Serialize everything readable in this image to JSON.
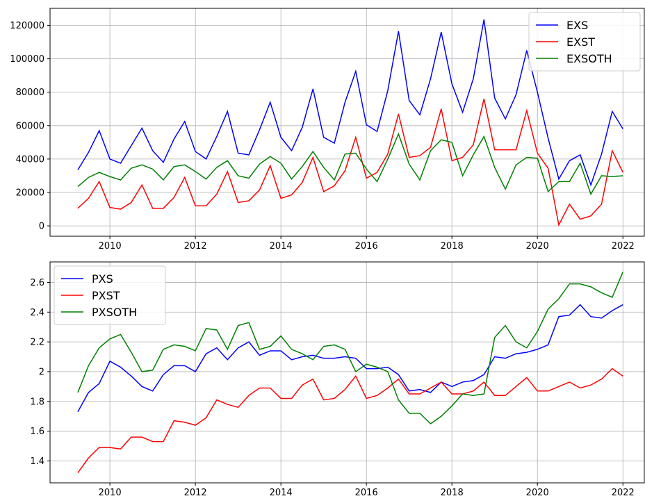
{
  "chart_data": [
    {
      "type": "line",
      "legend": "upper right",
      "grid": true,
      "xlim": [
        2008.6,
        2022.5
      ],
      "ylim": [
        -6200,
        130200
      ],
      "xticks": [
        2010,
        2012,
        2014,
        2016,
        2018,
        2020,
        2022
      ],
      "yticks": [
        0,
        20000,
        40000,
        60000,
        80000,
        100000,
        120000
      ],
      "x": [
        2009.25,
        2009.5,
        2009.75,
        2010,
        2010.25,
        2010.5,
        2010.75,
        2011,
        2011.25,
        2011.5,
        2011.75,
        2012,
        2012.25,
        2012.5,
        2012.75,
        2013,
        2013.25,
        2013.5,
        2013.75,
        2014,
        2014.25,
        2014.5,
        2014.75,
        2015,
        2015.25,
        2015.5,
        2015.75,
        2016,
        2016.25,
        2016.5,
        2016.75,
        2017,
        2017.25,
        2017.5,
        2017.75,
        2018,
        2018.25,
        2018.5,
        2018.75,
        2019,
        2019.25,
        2019.5,
        2019.75,
        2020,
        2020.25,
        2020.5,
        2020.75,
        2021,
        2021.25,
        2021.5,
        2021.75,
        2022
      ],
      "series": [
        {
          "name": "EXS",
          "color": "#0000ff",
          "values": [
            33500,
            44000,
            57000,
            40000,
            37500,
            48000,
            58500,
            45000,
            38000,
            52000,
            62500,
            44500,
            40000,
            53500,
            68500,
            43500,
            42500,
            57500,
            74000,
            53000,
            45000,
            59000,
            82000,
            53000,
            49500,
            74000,
            92500,
            60500,
            56500,
            81000,
            116500,
            75000,
            66500,
            88000,
            116000,
            85000,
            68000,
            88000,
            123500,
            76500,
            64000,
            78500,
            105000,
            80000,
            52500,
            28000,
            39000,
            42500,
            24500,
            43000,
            68500,
            58000
          ]
        },
        {
          "name": "EXST",
          "color": "#ff0000",
          "values": [
            10500,
            16500,
            26500,
            11000,
            10000,
            14000,
            24500,
            10500,
            10500,
            17000,
            29000,
            12000,
            12000,
            19000,
            32500,
            14000,
            15000,
            21500,
            36000,
            16500,
            18500,
            26000,
            41000,
            20500,
            24000,
            33000,
            53000,
            28500,
            32000,
            43000,
            67000,
            41000,
            42000,
            47000,
            70000,
            39000,
            41000,
            48500,
            76000,
            45500,
            45500,
            45500,
            69000,
            43500,
            34500,
            500,
            13000,
            4000,
            6000,
            13000,
            45000,
            32000
          ]
        },
        {
          "name": "EXSOTH",
          "color": "#008000",
          "values": [
            23500,
            29000,
            32000,
            29500,
            27500,
            34500,
            36500,
            34000,
            27500,
            35500,
            36500,
            32500,
            28000,
            35000,
            39000,
            30000,
            28500,
            37000,
            41500,
            37500,
            28000,
            35500,
            44500,
            35000,
            27500,
            43000,
            43500,
            34000,
            26500,
            40000,
            55000,
            37000,
            27500,
            45000,
            51500,
            50000,
            30000,
            42500,
            53500,
            35000,
            22000,
            36500,
            41000,
            40500,
            20500,
            26500,
            26500,
            37500,
            19000,
            30000,
            29500,
            30000
          ]
        }
      ]
    },
    {
      "type": "line",
      "legend": "upper left",
      "grid": true,
      "xlim": [
        2008.6,
        2022.5
      ],
      "ylim": [
        1.2525,
        2.7375
      ],
      "xticks": [
        2010,
        2012,
        2014,
        2016,
        2018,
        2020,
        2022
      ],
      "yticks": [
        1.4,
        1.6,
        1.8,
        2.0,
        2.2,
        2.4,
        2.6
      ],
      "x": [
        2009.25,
        2009.5,
        2009.75,
        2010,
        2010.25,
        2010.5,
        2010.75,
        2011,
        2011.25,
        2011.5,
        2011.75,
        2012,
        2012.25,
        2012.5,
        2012.75,
        2013,
        2013.25,
        2013.5,
        2013.75,
        2014,
        2014.25,
        2014.5,
        2014.75,
        2015,
        2015.25,
        2015.5,
        2015.75,
        2016,
        2016.25,
        2016.5,
        2016.75,
        2017,
        2017.25,
        2017.5,
        2017.75,
        2018,
        2018.25,
        2018.5,
        2018.75,
        2019,
        2019.25,
        2019.5,
        2019.75,
        2020,
        2020.25,
        2020.5,
        2020.75,
        2021,
        2021.25,
        2021.5,
        2021.75,
        2022
      ],
      "series": [
        {
          "name": "PXS",
          "color": "#0000ff",
          "values": [
            1.73,
            1.86,
            1.92,
            2.07,
            2.03,
            1.97,
            1.9,
            1.87,
            1.98,
            2.04,
            2.04,
            2.0,
            2.12,
            2.16,
            2.08,
            2.16,
            2.2,
            2.11,
            2.14,
            2.14,
            2.08,
            2.1,
            2.11,
            2.09,
            2.09,
            2.1,
            2.09,
            2.02,
            2.02,
            2.03,
            1.98,
            1.87,
            1.88,
            1.86,
            1.93,
            1.9,
            1.93,
            1.94,
            1.98,
            2.1,
            2.09,
            2.12,
            2.13,
            2.15,
            2.18,
            2.37,
            2.38,
            2.45,
            2.37,
            2.36,
            2.41,
            2.45
          ]
        },
        {
          "name": "PXST",
          "color": "#ff0000",
          "values": [
            1.32,
            1.42,
            1.49,
            1.49,
            1.48,
            1.56,
            1.56,
            1.53,
            1.53,
            1.67,
            1.66,
            1.64,
            1.69,
            1.81,
            1.78,
            1.76,
            1.84,
            1.89,
            1.89,
            1.82,
            1.82,
            1.91,
            1.95,
            1.81,
            1.82,
            1.88,
            1.97,
            1.82,
            1.84,
            1.89,
            1.95,
            1.85,
            1.85,
            1.89,
            1.93,
            1.85,
            1.85,
            1.87,
            1.93,
            1.84,
            1.84,
            1.9,
            1.96,
            1.87,
            1.87,
            1.9,
            1.93,
            1.89,
            1.91,
            1.95,
            2.02,
            1.97
          ]
        },
        {
          "name": "PXSOTH",
          "color": "#008000",
          "values": [
            1.86,
            2.04,
            2.16,
            2.22,
            2.25,
            2.13,
            2.0,
            2.01,
            2.15,
            2.18,
            2.17,
            2.14,
            2.29,
            2.28,
            2.15,
            2.31,
            2.33,
            2.15,
            2.17,
            2.24,
            2.15,
            2.12,
            2.08,
            2.17,
            2.18,
            2.15,
            2.0,
            2.05,
            2.03,
            2.0,
            1.81,
            1.72,
            1.72,
            1.65,
            1.7,
            1.77,
            1.85,
            1.84,
            1.85,
            2.23,
            2.31,
            2.2,
            2.16,
            2.27,
            2.42,
            2.49,
            2.59,
            2.59,
            2.57,
            2.53,
            2.5,
            2.67
          ]
        }
      ]
    }
  ]
}
